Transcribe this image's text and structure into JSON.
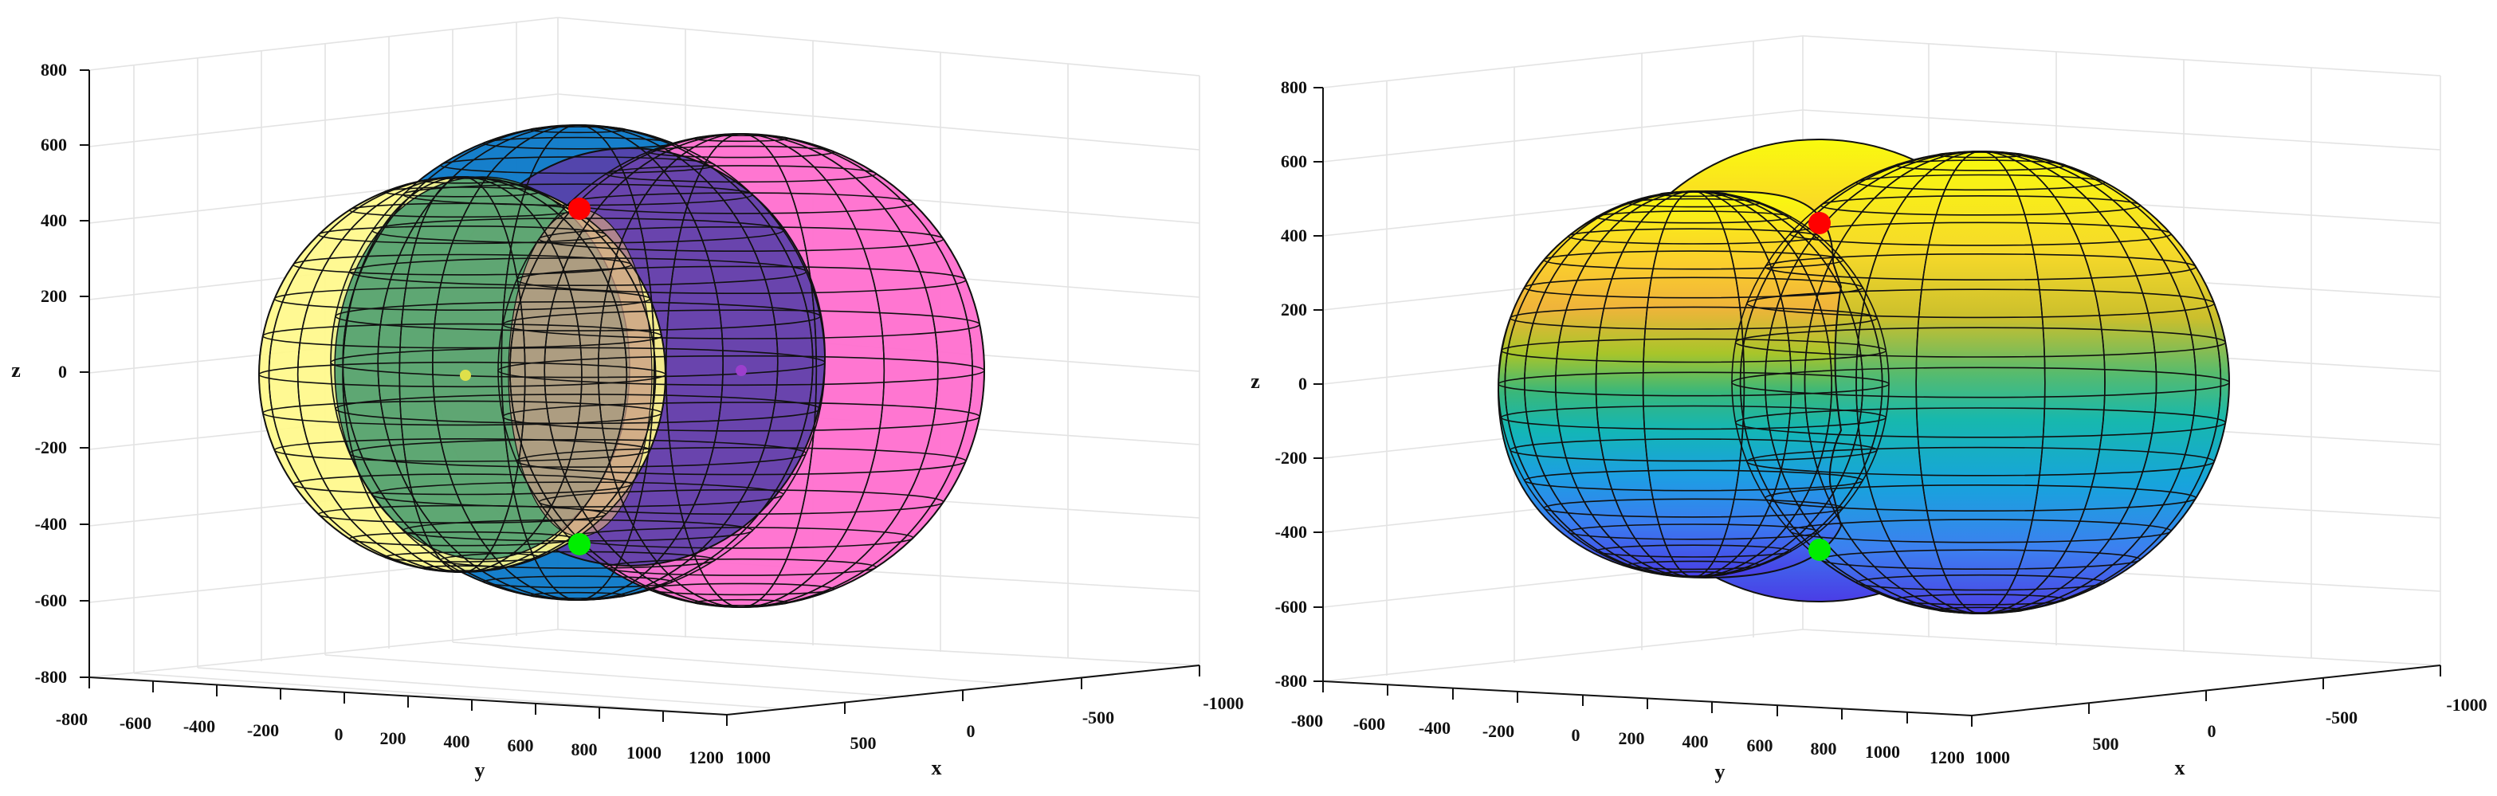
{
  "chart_data": [
    {
      "type": "3d-surface",
      "view": "transparent",
      "xlabel": "x",
      "ylabel": "y",
      "zlabel": "z",
      "xlim": [
        -1000,
        1000
      ],
      "ylim": [
        -800,
        1200
      ],
      "zlim": [
        -800,
        800
      ],
      "x_ticks": [
        "1000",
        "500",
        "0",
        "-500",
        "-1000"
      ],
      "y_ticks": [
        "-800",
        "-600",
        "-400",
        "-200",
        "0",
        "200",
        "400",
        "600",
        "800",
        "1000",
        "1200"
      ],
      "z_ticks": [
        "800",
        "600",
        "400",
        "200",
        "0",
        "-200",
        "-400",
        "-600",
        "-800"
      ],
      "grid": true,
      "spheres": [
        {
          "color": "#0077cc",
          "opacity": 0.85
        },
        {
          "color": "#ff66cc",
          "opacity": 0.8
        },
        {
          "color": "#ffff88",
          "opacity": 0.8
        },
        {
          "color": "#339966",
          "opacity": 0.6
        },
        {
          "color": "#5533aa",
          "opacity": 0.65
        }
      ],
      "points": [
        {
          "color": "#ff0000"
        },
        {
          "color": "#00ee00"
        }
      ]
    },
    {
      "type": "3d-surface",
      "view": "colormap",
      "colormap": "parula",
      "xlabel": "x",
      "ylabel": "y",
      "zlabel": "z",
      "xlim": [
        -1000,
        1000
      ],
      "ylim": [
        -800,
        1200
      ],
      "zlim": [
        -800,
        800
      ],
      "x_ticks": [
        "1000",
        "500",
        "0",
        "-500",
        "-1000"
      ],
      "y_ticks": [
        "-800",
        "-600",
        "-400",
        "-200",
        "0",
        "200",
        "400",
        "600",
        "800",
        "1000",
        "1200"
      ],
      "z_ticks": [
        "800",
        "600",
        "400",
        "200",
        "0",
        "-200",
        "-400",
        "-600",
        "-800"
      ],
      "grid": true,
      "points": [
        {
          "color": "#ff0000"
        },
        {
          "color": "#00ee00"
        }
      ]
    }
  ]
}
